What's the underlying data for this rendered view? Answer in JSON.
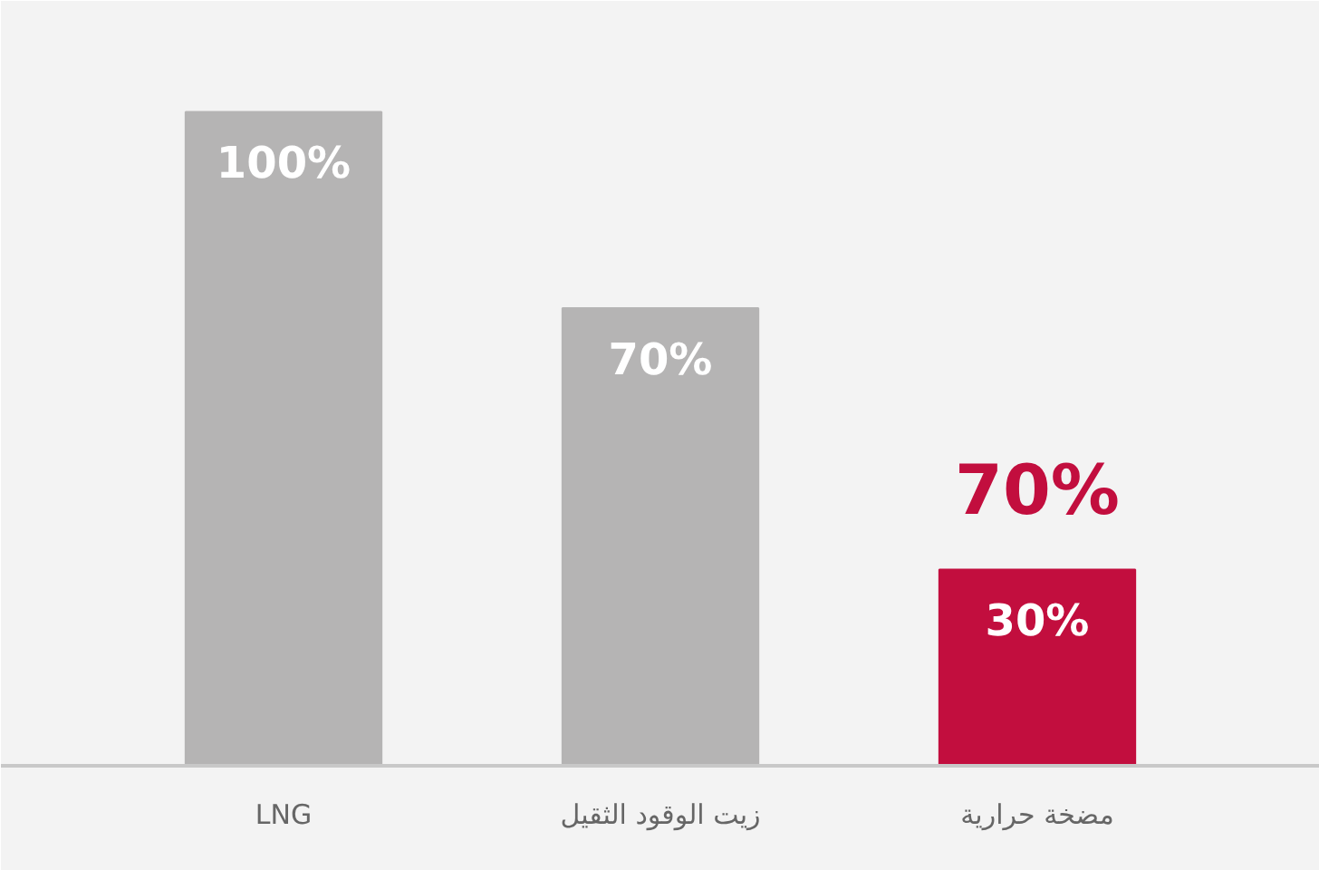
{
  "chart_data": {
    "type": "bar",
    "categories": [
      "LNG",
      "زيت الوقود الثقيل",
      "مضخة حرارية"
    ],
    "values": [
      100,
      70,
      30
    ],
    "colors": [
      "#b5b4b4",
      "#b5b4b4",
      "#c20e3e"
    ],
    "data_labels": true,
    "value_labels": [
      "100%",
      "70%",
      "30%"
    ],
    "annotations": [
      "70%"
    ],
    "grid": false
  }
}
